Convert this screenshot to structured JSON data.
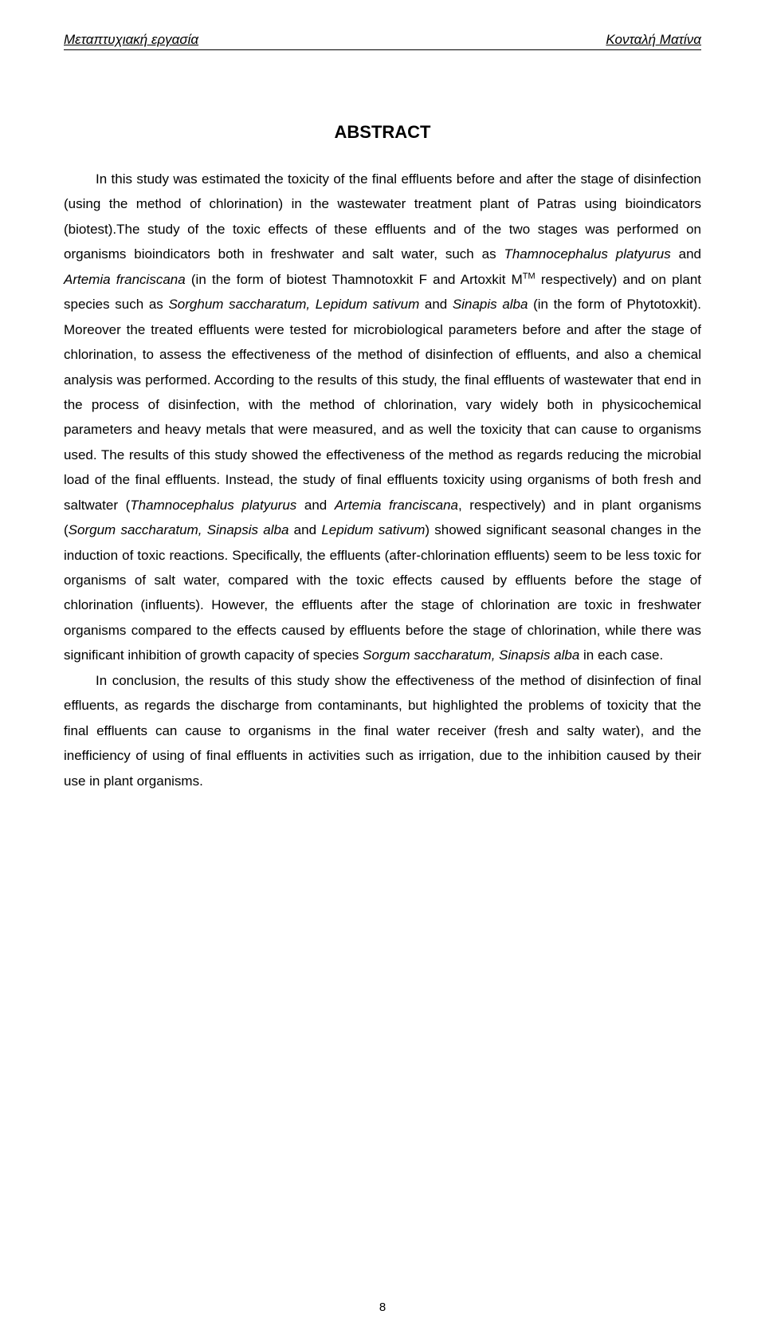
{
  "header": {
    "left": "Μεταπτυχιακή εργασία",
    "right": "Κονταλή Ματίνα"
  },
  "title": "ABSTRACT",
  "paragraphs": {
    "p1_a": "In this study was estimated the toxicity of the final effluents before and after the stage of disinfection (using the method of chlorination) in the wastewater treatment plant of Patras using bioindicators (biotest).The study of the toxic effects of these effluents and of the two stages was performed on organisms bioindicators both in freshwater and salt water, such as ",
    "p1_italic1": "Thamnocephalus platyurus",
    "p1_b": " and ",
    "p1_italic2": "Artemia franciscana",
    "p1_c": " (in the form of  biotest Thamnotoxkit F and Artoxkit M",
    "p1_sup": "TM",
    "p1_d": " respectively) and on plant species such as ",
    "p1_italic3": "Sorghum saccharatum, Lepidum sativum",
    "p1_e": " and ",
    "p1_italic4": "Sinapis alba",
    "p1_f": " (in the form of  Phytotoxkit). Moreover the treated effluents were tested for microbiological parameters before and after the stage of chlorination, to assess the effectiveness of the method of disinfection of effluents, and also a chemical analysis was performed. According to the results of this study, the final effluents of  wastewater that end in the process of disinfection, with the method of chlorination, vary widely both in physicochemical parameters and heavy metals  that were measured, and as well the toxicity that can cause to organisms used. The results of this study showed the effectiveness of the method as regards reducing the microbial load of the final effluents. Instead, the study of final effluents toxicity using organisms of both fresh and saltwater (",
    "p1_italic5": "Thamnocephalus platyurus",
    "p1_g": " and ",
    "p1_italic6": "Artemia franciscana",
    "p1_h": ", respectively) and in plant organisms (",
    "p1_italic7": "Sorgum saccharatum, Sinapsis alba",
    "p1_i": " and ",
    "p1_italic8": "Lepidum sativum",
    "p1_j": ") showed significant seasonal changes in the induction of toxic reactions. Specifically, the effluents (after-chlorination effluents) seem to be less toxic for organisms of salt water, compared with the toxic effects caused by effluents before the stage of chlorination (influents). However, the effluents after the stage of chlorination are toxic in freshwater organisms compared to the effects caused by effluents before the stage of chlorination, while there was significant inhibition of growth capacity of species ",
    "p1_italic9": "Sorgum saccharatum, Sinapsis alba",
    "p1_k": " in each case.",
    "p2": "In conclusion, the results of this study show the effectiveness of the method of disinfection of final effluents, as regards the discharge from contaminants, but highlighted the problems of toxicity that the final effluents can cause to organisms in the final water receiver (fresh and salty water), and the inefficiency of using of final effluents in activities such as irrigation, due to the inhibition caused by their use in plant organisms."
  },
  "page_number": "8",
  "colors": {
    "text": "#000000",
    "background": "#ffffff"
  },
  "typography": {
    "body_fontsize": 17,
    "title_fontsize": 22,
    "header_fontsize": 17,
    "line_height": 1.85,
    "font_family": "Arial"
  }
}
